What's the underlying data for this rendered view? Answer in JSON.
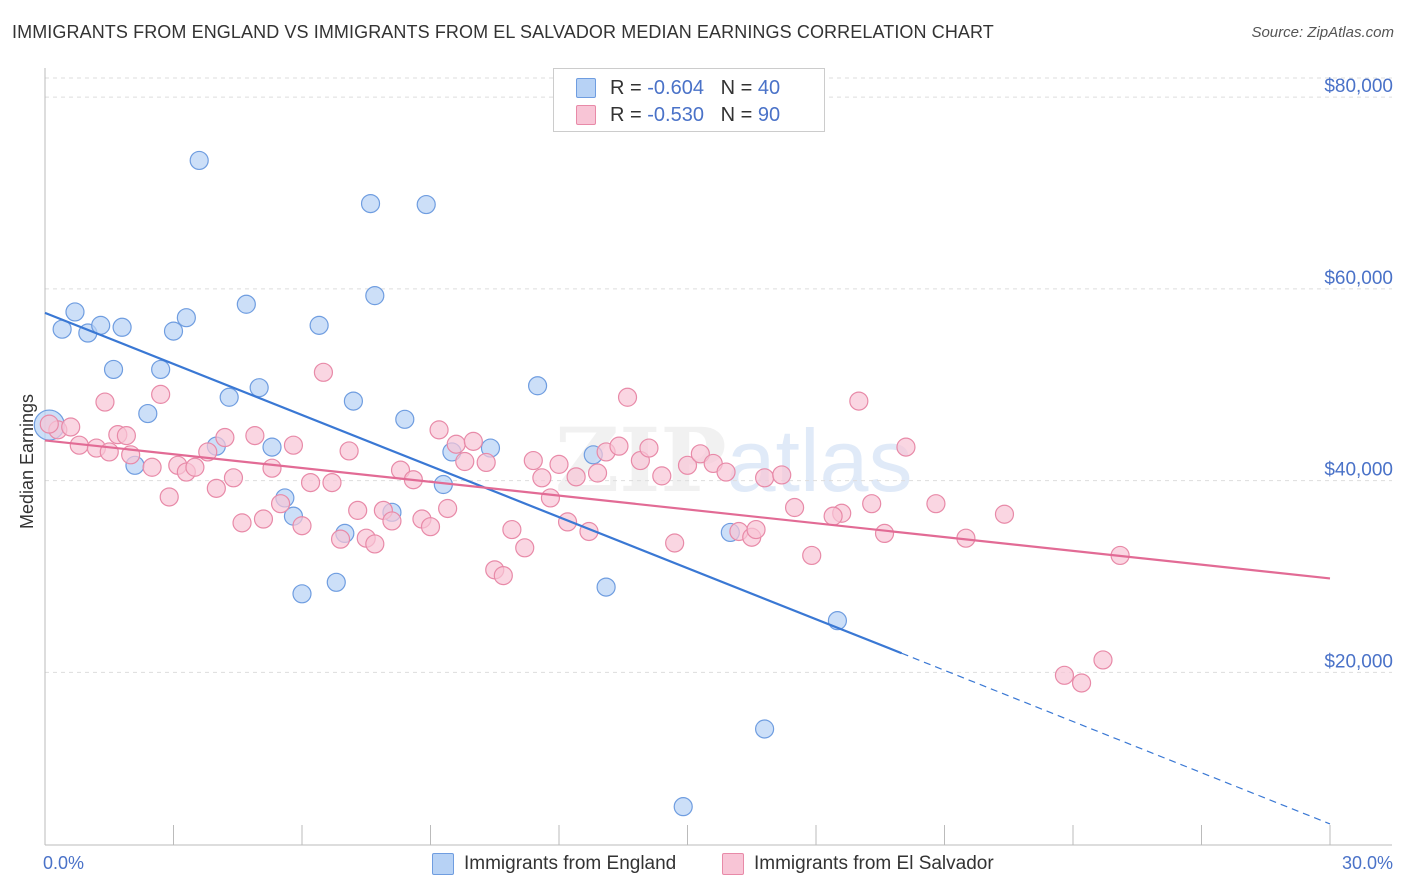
{
  "header": {
    "title": "IMMIGRANTS FROM ENGLAND VS IMMIGRANTS FROM EL SALVADOR MEDIAN EARNINGS CORRELATION CHART",
    "source": "Source: ZipAtlas.com"
  },
  "watermark": {
    "zip": "ZIP",
    "atlas": "atlas"
  },
  "legend": {
    "rows": [
      {
        "r_label": "R = ",
        "r_value": "-0.604",
        "n_label": "N = ",
        "n_value": "40",
        "color": "#6f9de0",
        "fill": "#b7d2f5"
      },
      {
        "r_label": "R = ",
        "r_value": "-0.530",
        "n_label": "N = ",
        "n_value": "90",
        "color": "#e88aa8",
        "fill": "#f8c5d6"
      }
    ]
  },
  "bottom_legend": {
    "england": "Immigrants from England",
    "elsalvador": "Immigrants from El Salvador"
  },
  "chart_data": {
    "type": "scatter",
    "title": "IMMIGRANTS FROM ENGLAND VS IMMIGRANTS FROM EL SALVADOR MEDIAN EARNINGS CORRELATION CHART",
    "xlabel": "",
    "ylabel": "Median Earnings",
    "xlim": [
      0,
      30
    ],
    "ylim": [
      2000,
      82000
    ],
    "x_tick_labels": [
      "0.0%",
      "30.0%"
    ],
    "y_ticks": [
      20000,
      40000,
      60000,
      80000
    ],
    "y_tick_labels": [
      "$20,000",
      "$40,000",
      "$60,000",
      "$80,000"
    ],
    "grid": true,
    "colors": {
      "england": "#3a78d4",
      "elsalvador": "#e26b95",
      "england_fill": "#b7d2f5",
      "elsalvador_fill": "#f8c5d6",
      "tick_label": "#4a72c8"
    },
    "series": [
      {
        "name": "Immigrants from England",
        "points": [
          [
            0.1,
            45800
          ],
          [
            0.4,
            55800
          ],
          [
            0.7,
            57600
          ],
          [
            1.0,
            55400
          ],
          [
            1.3,
            56200
          ],
          [
            1.8,
            56000
          ],
          [
            1.6,
            51600
          ],
          [
            2.1,
            41600
          ],
          [
            2.4,
            47000
          ],
          [
            2.7,
            51600
          ],
          [
            3.0,
            55600
          ],
          [
            3.3,
            57000
          ],
          [
            3.6,
            73400
          ],
          [
            4.0,
            43600
          ],
          [
            4.3,
            48700
          ],
          [
            4.7,
            58400
          ],
          [
            5.0,
            49700
          ],
          [
            5.3,
            43500
          ],
          [
            5.6,
            38200
          ],
          [
            5.8,
            36300
          ],
          [
            6.0,
            28200
          ],
          [
            6.4,
            56200
          ],
          [
            6.8,
            29400
          ],
          [
            7.2,
            48300
          ],
          [
            7.0,
            34500
          ],
          [
            7.6,
            68900
          ],
          [
            7.7,
            59300
          ],
          [
            8.1,
            36700
          ],
          [
            8.4,
            46400
          ],
          [
            8.9,
            68800
          ],
          [
            9.3,
            39600
          ],
          [
            9.5,
            43000
          ],
          [
            10.4,
            43400
          ],
          [
            11.5,
            49900
          ],
          [
            12.8,
            42700
          ],
          [
            13.1,
            28900
          ],
          [
            14.9,
            6000
          ],
          [
            16.0,
            34600
          ],
          [
            16.8,
            14100
          ],
          [
            18.5,
            25400
          ]
        ]
      },
      {
        "name": "Immigrants from El Salvador",
        "points": [
          [
            0.3,
            45300
          ],
          [
            0.6,
            45600
          ],
          [
            0.8,
            43700
          ],
          [
            1.2,
            43400
          ],
          [
            1.4,
            48200
          ],
          [
            1.5,
            43000
          ],
          [
            1.7,
            44800
          ],
          [
            1.9,
            44700
          ],
          [
            2.0,
            42700
          ],
          [
            2.5,
            41400
          ],
          [
            2.7,
            49000
          ],
          [
            2.9,
            38300
          ],
          [
            3.1,
            41600
          ],
          [
            3.3,
            40900
          ],
          [
            3.5,
            41400
          ],
          [
            3.8,
            43000
          ],
          [
            4.0,
            39200
          ],
          [
            4.2,
            44500
          ],
          [
            4.4,
            40300
          ],
          [
            4.6,
            35600
          ],
          [
            4.9,
            44700
          ],
          [
            5.1,
            36000
          ],
          [
            5.3,
            41300
          ],
          [
            5.5,
            37600
          ],
          [
            5.8,
            43700
          ],
          [
            6.0,
            35300
          ],
          [
            6.2,
            39800
          ],
          [
            6.5,
            51300
          ],
          [
            6.7,
            39800
          ],
          [
            6.9,
            33900
          ],
          [
            7.1,
            43100
          ],
          [
            7.3,
            36900
          ],
          [
            7.5,
            34000
          ],
          [
            7.7,
            33400
          ],
          [
            7.9,
            36900
          ],
          [
            8.1,
            35800
          ],
          [
            8.3,
            41100
          ],
          [
            8.6,
            40100
          ],
          [
            8.8,
            36000
          ],
          [
            9.0,
            35200
          ],
          [
            9.2,
            45300
          ],
          [
            9.4,
            37100
          ],
          [
            9.6,
            43800
          ],
          [
            9.8,
            42000
          ],
          [
            10.0,
            44100
          ],
          [
            10.3,
            41900
          ],
          [
            10.5,
            30700
          ],
          [
            10.7,
            30100
          ],
          [
            10.9,
            34900
          ],
          [
            11.2,
            33000
          ],
          [
            11.4,
            42100
          ],
          [
            11.6,
            40300
          ],
          [
            11.8,
            38200
          ],
          [
            12.0,
            41700
          ],
          [
            12.2,
            35700
          ],
          [
            12.4,
            40400
          ],
          [
            12.7,
            34700
          ],
          [
            12.9,
            40800
          ],
          [
            13.1,
            43000
          ],
          [
            13.4,
            43600
          ],
          [
            13.6,
            48700
          ],
          [
            13.9,
            42100
          ],
          [
            14.1,
            43400
          ],
          [
            14.4,
            40500
          ],
          [
            14.7,
            33500
          ],
          [
            15.0,
            41600
          ],
          [
            15.3,
            42800
          ],
          [
            15.6,
            41800
          ],
          [
            15.9,
            40900
          ],
          [
            16.2,
            34700
          ],
          [
            16.5,
            34100
          ],
          [
            16.8,
            40300
          ],
          [
            17.2,
            40600
          ],
          [
            17.5,
            37200
          ],
          [
            17.9,
            32200
          ],
          [
            18.6,
            36600
          ],
          [
            19.0,
            48300
          ],
          [
            19.3,
            37600
          ],
          [
            19.6,
            34500
          ],
          [
            20.1,
            43500
          ],
          [
            20.8,
            37600
          ],
          [
            21.5,
            34000
          ],
          [
            22.4,
            36500
          ],
          [
            23.8,
            19700
          ],
          [
            24.2,
            18900
          ],
          [
            24.7,
            21300
          ],
          [
            25.1,
            32200
          ],
          [
            18.4,
            36300
          ],
          [
            16.6,
            34900
          ],
          [
            0.1,
            45900
          ]
        ]
      }
    ],
    "trendlines": [
      {
        "series": "Immigrants from England",
        "x0": 0,
        "y0": 57500,
        "x1": 20.0,
        "y1": 22000,
        "dashed_to_x": 30,
        "dashed_to_y": 4200
      },
      {
        "series": "Immigrants from El Salvador",
        "x0": 0,
        "y0": 44200,
        "x1": 30,
        "y1": 29800
      }
    ]
  }
}
